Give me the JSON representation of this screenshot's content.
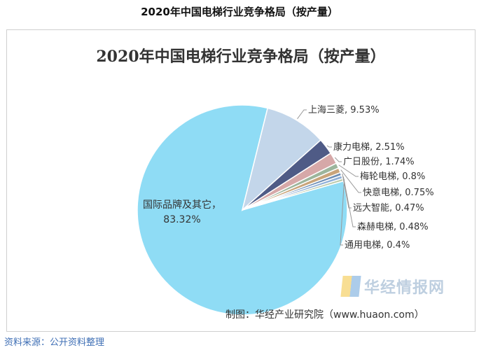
{
  "page": {
    "title": "2020年中国电梯行业竞争格局（按产量）",
    "source": "资料来源：公开资料整理"
  },
  "credit": "制图：华经产业研究院（www.huaon.com）",
  "watermark": "华经情报网",
  "chart_data": {
    "type": "pie",
    "title": "2020年中国电梯行业竞争格局（按产量）",
    "series": [
      {
        "name": "国际品牌及其它",
        "value": 83.32,
        "label": "83.32%",
        "color": "#8fdcf5"
      },
      {
        "name": "上海三菱",
        "value": 9.53,
        "label": "9.53%",
        "color": "#c3d6ea"
      },
      {
        "name": "康力电梯",
        "value": 2.51,
        "label": "2.51%",
        "color": "#4f5b86"
      },
      {
        "name": "广日股份",
        "value": 1.74,
        "label": "1.74%",
        "color": "#d6a8a8"
      },
      {
        "name": "梅轮电梯",
        "value": 0.8,
        "label": "0.8%",
        "color": "#9cb59c"
      },
      {
        "name": "快意电梯",
        "value": 0.75,
        "label": "0.75%",
        "color": "#c9a47a"
      },
      {
        "name": "远大智能",
        "value": 0.47,
        "label": "0.47%",
        "color": "#6c8db5"
      },
      {
        "name": "森赫电梯",
        "value": 0.48,
        "label": "0.48%",
        "color": "#8fb0d8"
      },
      {
        "name": "通用电梯",
        "value": 0.4,
        "label": "0.4%",
        "color": "#b9c9a8"
      }
    ]
  }
}
